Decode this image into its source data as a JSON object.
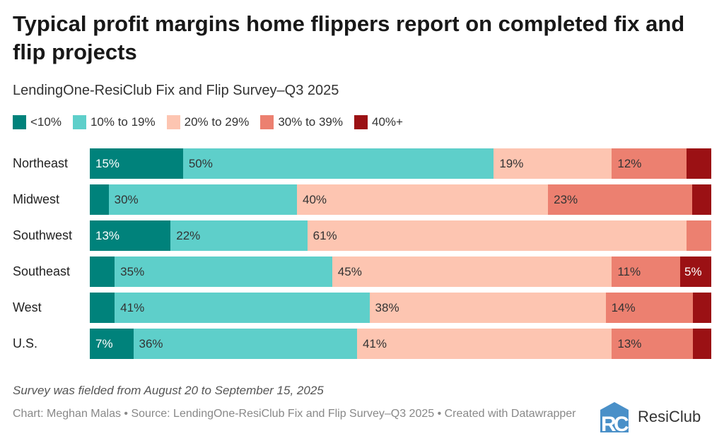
{
  "chart_data": {
    "type": "bar",
    "orientation": "horizontal",
    "stacked": true,
    "title": "Typical profit margins home flippers report on completed fix and flip projects",
    "subtitle": "LendingOne-ResiClub Fix and Flip Survey–Q3 2025",
    "categories": [
      "Northeast",
      "Midwest",
      "Southwest",
      "Southeast",
      "West",
      "U.S."
    ],
    "series": [
      {
        "name": "<10%",
        "color": "#00827b",
        "values": [
          15,
          3,
          13,
          4,
          4,
          7
        ]
      },
      {
        "name": "10% to 19%",
        "color": "#5ecfca",
        "values": [
          50,
          30,
          22,
          35,
          41,
          36
        ]
      },
      {
        "name": "20% to 29%",
        "color": "#fdc5b1",
        "values": [
          19,
          40,
          61,
          45,
          38,
          41
        ]
      },
      {
        "name": "30% to 39%",
        "color": "#ec8070",
        "values": [
          12,
          23,
          4,
          11,
          14,
          13
        ]
      },
      {
        "name": "40%+",
        "color": "#9b1114",
        "values": [
          4,
          3,
          0,
          5,
          3,
          3
        ]
      }
    ],
    "xlim": [
      0,
      100
    ],
    "legend": "top",
    "grid": false
  },
  "notes": "Survey was fielded from August 20 to September 15, 2025",
  "credit": "Chart: Meghan Malas • Source: LendingOne-ResiClub Fix and Flip Survey–Q3 2025 • Created with Datawrapper",
  "logo": {
    "text": "ResiClub",
    "color": "#4a90c8"
  }
}
